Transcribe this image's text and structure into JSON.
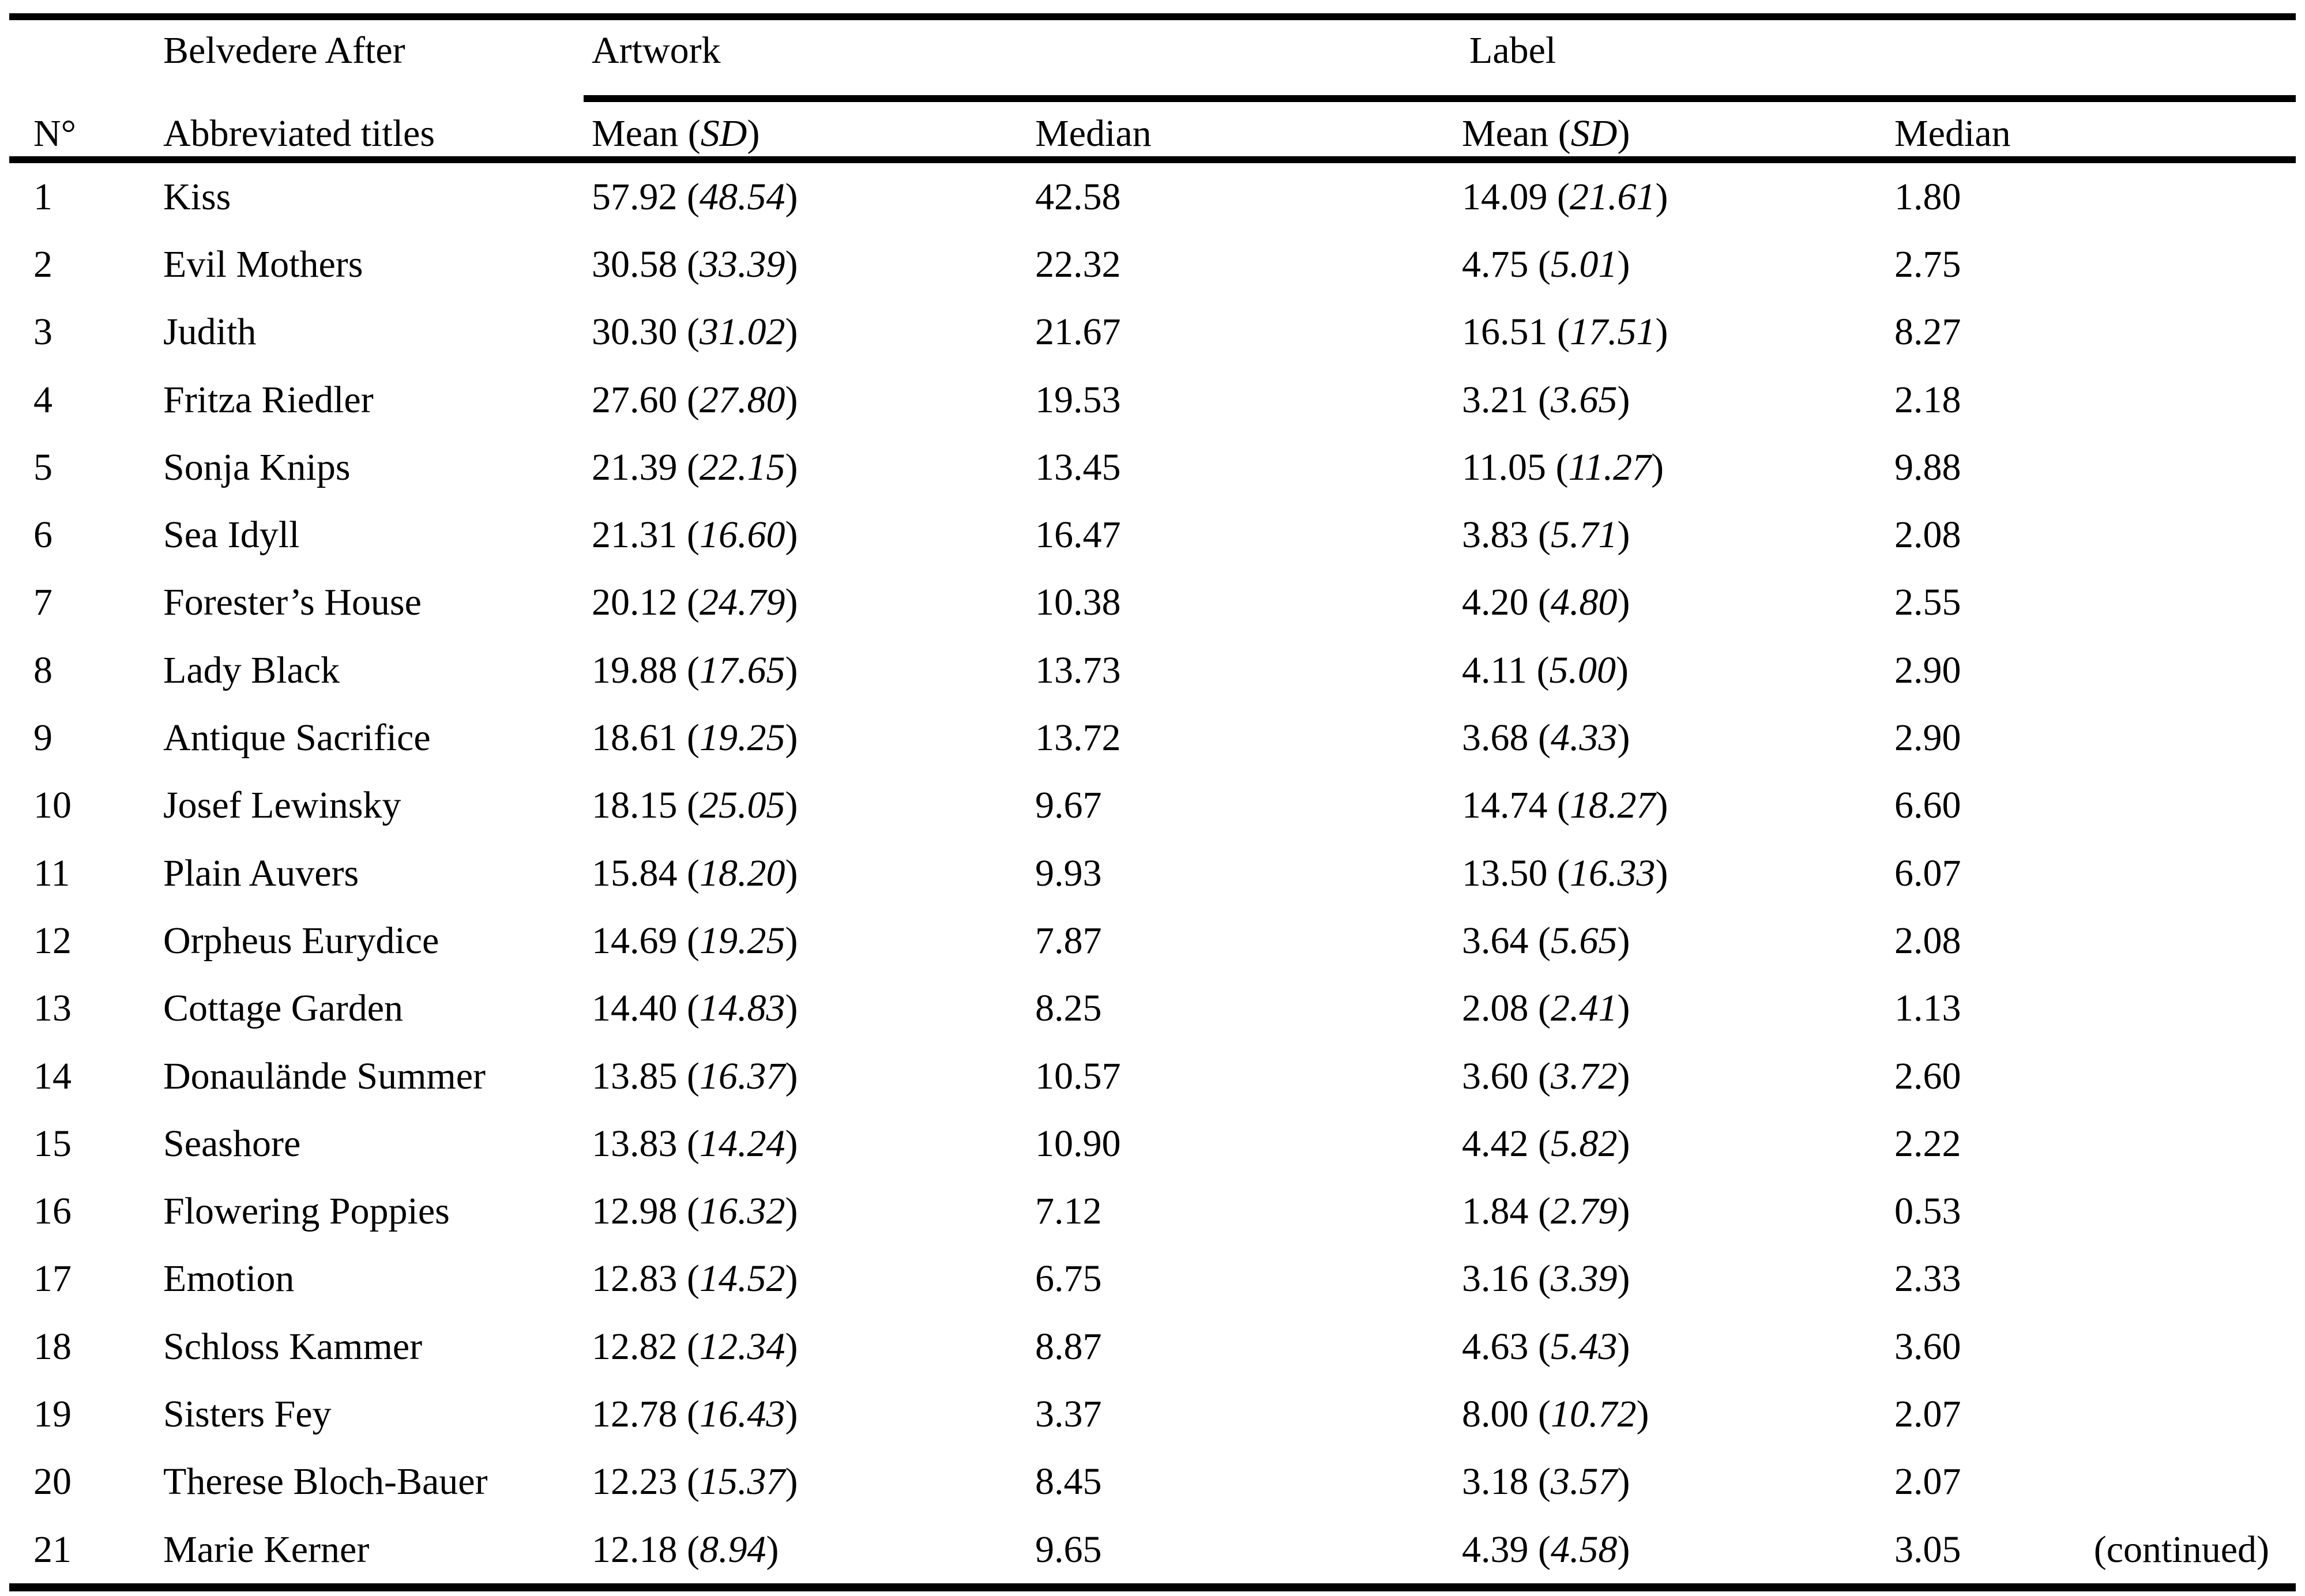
{
  "table": {
    "header": {
      "group_col_title_line1": "Belvedere After",
      "artwork_group": "Artwork",
      "label_group": "Label",
      "col_n": "N°",
      "col_titles": "Abbreviated titles",
      "mean_sd_prefix": "Mean (",
      "mean_sd_italic": "SD",
      "mean_sd_suffix": ")",
      "col_median": "Median"
    },
    "format": {
      "open": " (",
      "close": ")"
    },
    "rows": [
      {
        "n": "1",
        "title": "Kiss",
        "artwork_mean": "57.92",
        "artwork_sd": "48.54",
        "artwork_median": "42.58",
        "label_mean": "14.09",
        "label_sd": "21.61",
        "label_median": "1.80"
      },
      {
        "n": "2",
        "title": "Evil Mothers",
        "artwork_mean": "30.58",
        "artwork_sd": "33.39",
        "artwork_median": "22.32",
        "label_mean": "4.75",
        "label_sd": "5.01",
        "label_median": "2.75"
      },
      {
        "n": "3",
        "title": "Judith",
        "artwork_mean": "30.30",
        "artwork_sd": "31.02",
        "artwork_median": "21.67",
        "label_mean": "16.51",
        "label_sd": "17.51",
        "label_median": "8.27"
      },
      {
        "n": "4",
        "title": "Fritza Riedler",
        "artwork_mean": "27.60",
        "artwork_sd": "27.80",
        "artwork_median": "19.53",
        "label_mean": "3.21",
        "label_sd": "3.65",
        "label_median": "2.18"
      },
      {
        "n": "5",
        "title": "Sonja Knips",
        "artwork_mean": "21.39",
        "artwork_sd": "22.15",
        "artwork_median": "13.45",
        "label_mean": "11.05",
        "label_sd": "11.27",
        "label_median": "9.88"
      },
      {
        "n": "6",
        "title": "Sea Idyll",
        "artwork_mean": "21.31",
        "artwork_sd": "16.60",
        "artwork_median": "16.47",
        "label_mean": "3.83",
        "label_sd": "5.71",
        "label_median": "2.08"
      },
      {
        "n": "7",
        "title": "Forester’s House",
        "artwork_mean": "20.12",
        "artwork_sd": "24.79",
        "artwork_median": "10.38",
        "label_mean": "4.20",
        "label_sd": "4.80",
        "label_median": "2.55"
      },
      {
        "n": "8",
        "title": "Lady Black",
        "artwork_mean": "19.88",
        "artwork_sd": "17.65",
        "artwork_median": "13.73",
        "label_mean": "4.11",
        "label_sd": "5.00",
        "label_median": "2.90"
      },
      {
        "n": "9",
        "title": "Antique Sacrifice",
        "artwork_mean": "18.61",
        "artwork_sd": "19.25",
        "artwork_median": "13.72",
        "label_mean": "3.68",
        "label_sd": "4.33",
        "label_median": "2.90"
      },
      {
        "n": "10",
        "title": "Josef Lewinsky",
        "artwork_mean": "18.15",
        "artwork_sd": "25.05",
        "artwork_median": "9.67",
        "label_mean": "14.74",
        "label_sd": "18.27",
        "label_median": "6.60"
      },
      {
        "n": "11",
        "title": "Plain Auvers",
        "artwork_mean": "15.84",
        "artwork_sd": "18.20",
        "artwork_median": "9.93",
        "label_mean": "13.50",
        "label_sd": "16.33",
        "label_median": "6.07"
      },
      {
        "n": "12",
        "title": "Orpheus Eurydice",
        "artwork_mean": "14.69",
        "artwork_sd": "19.25",
        "artwork_median": "7.87",
        "label_mean": "3.64",
        "label_sd": "5.65",
        "label_median": "2.08"
      },
      {
        "n": "13",
        "title": "Cottage Garden",
        "artwork_mean": "14.40",
        "artwork_sd": "14.83",
        "artwork_median": "8.25",
        "label_mean": "2.08",
        "label_sd": "2.41",
        "label_median": "1.13"
      },
      {
        "n": "14",
        "title": "Donaulände Summer",
        "artwork_mean": "13.85",
        "artwork_sd": "16.37",
        "artwork_median": "10.57",
        "label_mean": "3.60",
        "label_sd": "3.72",
        "label_median": "2.60"
      },
      {
        "n": "15",
        "title": "Seashore",
        "artwork_mean": "13.83",
        "artwork_sd": "14.24",
        "artwork_median": "10.90",
        "label_mean": "4.42",
        "label_sd": "5.82",
        "label_median": "2.22"
      },
      {
        "n": "16",
        "title": "Flowering Poppies",
        "artwork_mean": "12.98",
        "artwork_sd": "16.32",
        "artwork_median": "7.12",
        "label_mean": "1.84",
        "label_sd": "2.79",
        "label_median": "0.53"
      },
      {
        "n": "17",
        "title": "Emotion",
        "artwork_mean": "12.83",
        "artwork_sd": "14.52",
        "artwork_median": "6.75",
        "label_mean": "3.16",
        "label_sd": "3.39",
        "label_median": "2.33"
      },
      {
        "n": "18",
        "title": "Schloss Kammer",
        "artwork_mean": "12.82",
        "artwork_sd": "12.34",
        "artwork_median": "8.87",
        "label_mean": "4.63",
        "label_sd": "5.43",
        "label_median": "3.60"
      },
      {
        "n": "19",
        "title": "Sisters Fey",
        "artwork_mean": "12.78",
        "artwork_sd": "16.43",
        "artwork_median": "3.37",
        "label_mean": "8.00",
        "label_sd": "10.72",
        "label_median": "2.07"
      },
      {
        "n": "20",
        "title": "Therese Bloch-Bauer",
        "artwork_mean": "12.23",
        "artwork_sd": "15.37",
        "artwork_median": "8.45",
        "label_mean": "3.18",
        "label_sd": "3.57",
        "label_median": "2.07"
      },
      {
        "n": "21",
        "title": "Marie Kerner",
        "artwork_mean": "12.18",
        "artwork_sd": "8.94",
        "artwork_median": "9.65",
        "label_mean": "4.39",
        "label_sd": "4.58",
        "label_median": "3.05"
      }
    ],
    "continued_note": "(continued)"
  },
  "colors": {
    "background": "#ffffff",
    "text": "#000000",
    "rule": "#000000"
  }
}
